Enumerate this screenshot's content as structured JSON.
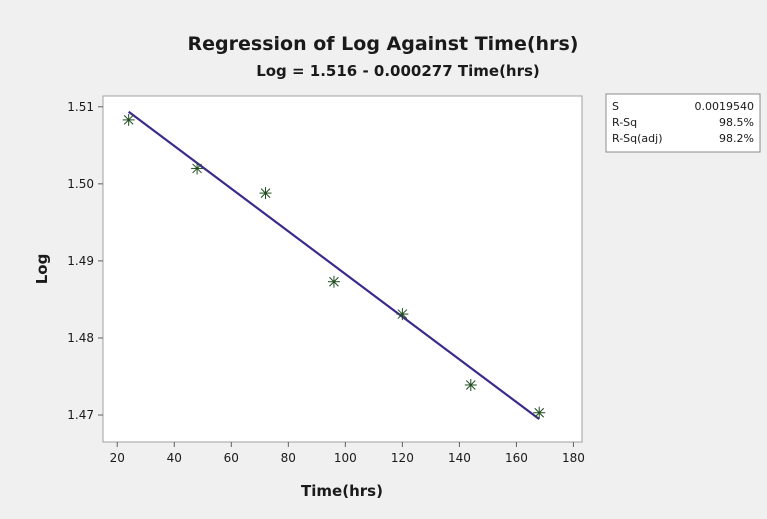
{
  "chart_data": {
    "type": "scatter",
    "title": "Regression of Log Against Time(hrs)",
    "subtitle": "Log = 1.516 - 0.000277 Time(hrs)",
    "xlabel": "Time(hrs)",
    "ylabel": "Log",
    "xlim": [
      15,
      183
    ],
    "ylim": [
      1.4665,
      1.5114
    ],
    "x_ticks": [
      20,
      40,
      60,
      80,
      100,
      120,
      140,
      160,
      180
    ],
    "x_tick_labels": [
      "20",
      "40",
      "60",
      "80",
      "100",
      "120",
      "140",
      "160",
      "180"
    ],
    "y_ticks": [
      1.47,
      1.48,
      1.49,
      1.5,
      1.51
    ],
    "y_tick_labels": [
      "1.47",
      "1.48",
      "1.49",
      "1.50",
      "1.51"
    ],
    "grid": false,
    "legend": "none",
    "points": {
      "x": [
        24,
        48,
        72,
        96,
        120,
        144,
        168
      ],
      "y": [
        1.5083,
        1.502,
        1.4988,
        1.4873,
        1.4831,
        1.4739,
        1.4703
      ]
    },
    "fit_line": {
      "intercept": 1.516,
      "slope": -0.000277,
      "x_range": [
        24,
        168
      ]
    },
    "stats": [
      {
        "label": "S",
        "value": "0.0019540"
      },
      {
        "label": "R-Sq",
        "value": "98.5%"
      },
      {
        "label": "R-Sq(adj)",
        "value": "98.2%"
      }
    ],
    "colors": {
      "fit_line": "#3d2a8c",
      "marker": "#1f4d1f",
      "background": "#f0f0f0",
      "plot_area": "#ffffff"
    }
  }
}
